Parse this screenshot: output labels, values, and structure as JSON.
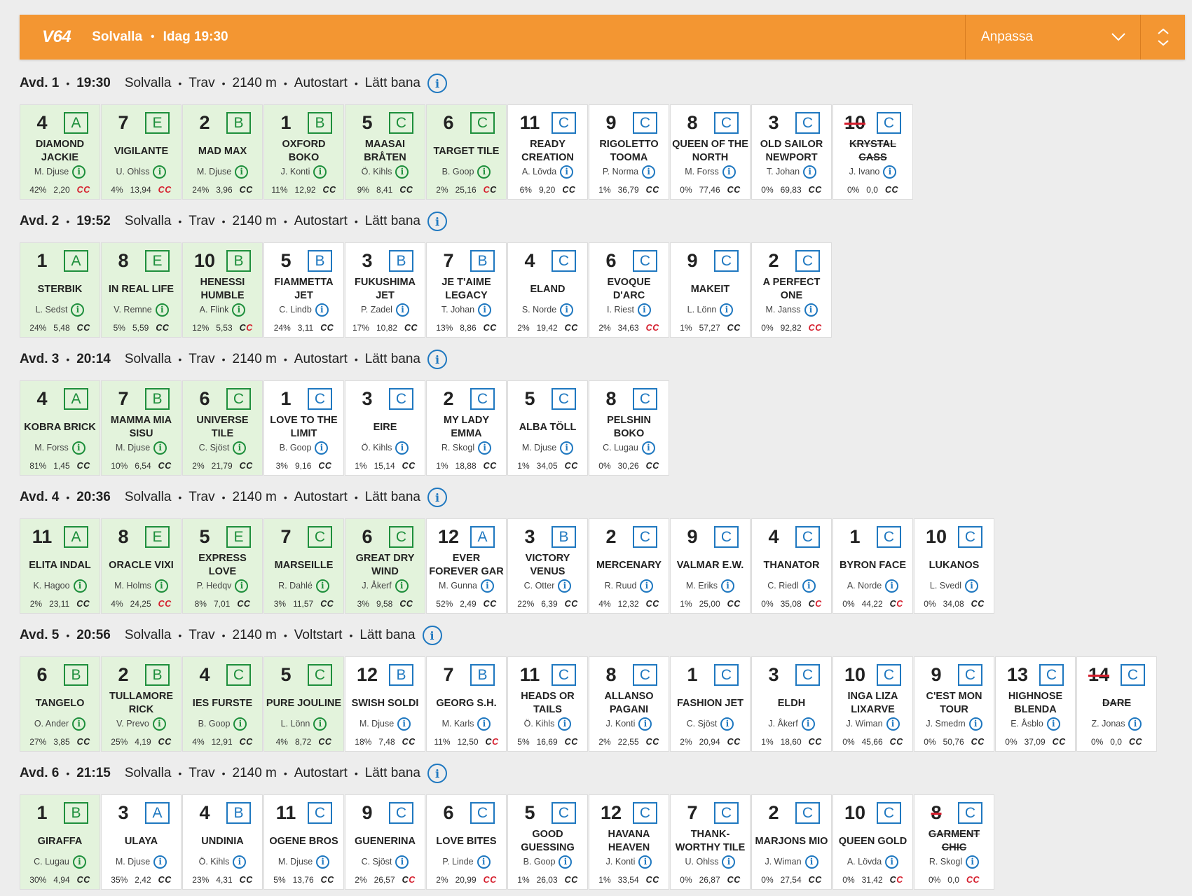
{
  "header": {
    "logo": "V64",
    "track": "Solvalla",
    "sep": "•",
    "time": "Idag 19:30",
    "adapt_label": "Anpassa",
    "bg": "#f39632"
  },
  "colors": {
    "selected_bg": "#e3f3dc",
    "selected_rank": "#1e8f3c",
    "rank_blue": "#1f78c0",
    "scratch_red": "#d51e2d"
  },
  "races": [
    {
      "avd": "Avd. 1",
      "time": "19:30",
      "track": "Solvalla",
      "type": "Trav",
      "dist": "2140 m",
      "start": "Autostart",
      "track_cond": "Lätt bana",
      "horses": [
        {
          "num": "4",
          "rank": "A",
          "name": "DIAMOND JACKIE",
          "driver": "M. Djuse",
          "pct": "42%",
          "odds": "2,20",
          "cc": [
            "r",
            "r"
          ],
          "sel": true
        },
        {
          "num": "7",
          "rank": "E",
          "name": "VIGILANTE",
          "driver": "U. Ohlss",
          "pct": "4%",
          "odds": "13,94",
          "cc": [
            "r",
            "r"
          ],
          "sel": true
        },
        {
          "num": "2",
          "rank": "B",
          "name": "MAD MAX",
          "driver": "M. Djuse",
          "pct": "24%",
          "odds": "3,96",
          "cc": [
            "n",
            "n"
          ],
          "sel": true
        },
        {
          "num": "1",
          "rank": "B",
          "name": "OXFORD BOKO",
          "driver": "J. Konti",
          "pct": "11%",
          "odds": "12,92",
          "cc": [
            "n",
            "n"
          ],
          "sel": true
        },
        {
          "num": "5",
          "rank": "C",
          "name": "MAASAI BRÅTEN",
          "driver": "Ö. Kihls",
          "pct": "9%",
          "odds": "8,41",
          "cc": [
            "n",
            "n"
          ],
          "sel": true
        },
        {
          "num": "6",
          "rank": "C",
          "name": "TARGET TILE",
          "driver": "B. Goop",
          "pct": "2%",
          "odds": "25,16",
          "cc": [
            "r",
            "n"
          ],
          "sel": true
        },
        {
          "num": "11",
          "rank": "C",
          "name": "READY CREATION",
          "driver": "A. Lövda",
          "pct": "6%",
          "odds": "9,20",
          "cc": [
            "n",
            "n"
          ],
          "sel": false
        },
        {
          "num": "9",
          "rank": "C",
          "name": "RIGOLETTO TOOMA",
          "driver": "P. Norma",
          "pct": "1%",
          "odds": "36,79",
          "cc": [
            "n",
            "n"
          ],
          "sel": false
        },
        {
          "num": "8",
          "rank": "C",
          "name": "QUEEN OF THE NORTH",
          "driver": "M. Forss",
          "pct": "0%",
          "odds": "77,46",
          "cc": [
            "n",
            "n"
          ],
          "sel": false
        },
        {
          "num": "3",
          "rank": "C",
          "name": "OLD SAILOR NEWPORT",
          "driver": "T. Johan",
          "pct": "0%",
          "odds": "69,83",
          "cc": [
            "n",
            "n"
          ],
          "sel": false
        },
        {
          "num": "10",
          "rank": "C",
          "name": "KRYSTAL CASS",
          "driver": "J. Ivano",
          "pct": "0%",
          "odds": "0,0",
          "cc": [
            "n",
            "n"
          ],
          "sel": false,
          "scratched": true
        }
      ]
    },
    {
      "avd": "Avd. 2",
      "time": "19:52",
      "track": "Solvalla",
      "type": "Trav",
      "dist": "2140 m",
      "start": "Autostart",
      "track_cond": "Lätt bana",
      "horses": [
        {
          "num": "1",
          "rank": "A",
          "name": "STERBIK",
          "driver": "L. Sedst",
          "pct": "24%",
          "odds": "5,48",
          "cc": [
            "n",
            "n"
          ],
          "sel": true
        },
        {
          "num": "8",
          "rank": "E",
          "name": "IN REAL LIFE",
          "driver": "V. Remne",
          "pct": "5%",
          "odds": "5,59",
          "cc": [
            "n",
            "n"
          ],
          "sel": true
        },
        {
          "num": "10",
          "rank": "B",
          "name": "HENESSI HUMBLE",
          "driver": "A. Flink",
          "pct": "12%",
          "odds": "5,53",
          "cc": [
            "n",
            "r"
          ],
          "sel": true
        },
        {
          "num": "5",
          "rank": "B",
          "name": "FIAMMETTA JET",
          "driver": "C. Lindb",
          "pct": "24%",
          "odds": "3,11",
          "cc": [
            "n",
            "n"
          ],
          "sel": false
        },
        {
          "num": "3",
          "rank": "B",
          "name": "FUKUSHIMA JET",
          "driver": "P. Zadel",
          "pct": "17%",
          "odds": "10,82",
          "cc": [
            "n",
            "n"
          ],
          "sel": false
        },
        {
          "num": "7",
          "rank": "B",
          "name": "JE T'AIME LEGACY",
          "driver": "T. Johan",
          "pct": "13%",
          "odds": "8,86",
          "cc": [
            "n",
            "n"
          ],
          "sel": false
        },
        {
          "num": "4",
          "rank": "C",
          "name": "ELAND",
          "driver": "S. Norde",
          "pct": "2%",
          "odds": "19,42",
          "cc": [
            "n",
            "n"
          ],
          "sel": false
        },
        {
          "num": "6",
          "rank": "C",
          "name": "EVOQUE D'ARC",
          "driver": "I. Riest",
          "pct": "2%",
          "odds": "34,63",
          "cc": [
            "r",
            "r"
          ],
          "sel": false
        },
        {
          "num": "9",
          "rank": "C",
          "name": "MAKEIT",
          "driver": "L. Lönn",
          "pct": "1%",
          "odds": "57,27",
          "cc": [
            "n",
            "n"
          ],
          "sel": false
        },
        {
          "num": "2",
          "rank": "C",
          "name": "A PERFECT ONE",
          "driver": "M. Janss",
          "pct": "0%",
          "odds": "92,82",
          "cc": [
            "r",
            "r"
          ],
          "sel": false
        }
      ]
    },
    {
      "avd": "Avd. 3",
      "time": "20:14",
      "track": "Solvalla",
      "type": "Trav",
      "dist": "2140 m",
      "start": "Autostart",
      "track_cond": "Lätt bana",
      "horses": [
        {
          "num": "4",
          "rank": "A",
          "name": "KOBRA BRICK",
          "driver": "M. Forss",
          "pct": "81%",
          "odds": "1,45",
          "cc": [
            "n",
            "n"
          ],
          "sel": true
        },
        {
          "num": "7",
          "rank": "B",
          "name": "MAMMA MIA SISU",
          "driver": "M. Djuse",
          "pct": "10%",
          "odds": "6,54",
          "cc": [
            "n",
            "n"
          ],
          "sel": true
        },
        {
          "num": "6",
          "rank": "C",
          "name": "UNIVERSE TILE",
          "driver": "C. Sjöst",
          "pct": "2%",
          "odds": "21,79",
          "cc": [
            "n",
            "n"
          ],
          "sel": true
        },
        {
          "num": "1",
          "rank": "C",
          "name": "LOVE TO THE LIMIT",
          "driver": "B. Goop",
          "pct": "3%",
          "odds": "9,16",
          "cc": [
            "n",
            "n"
          ],
          "sel": false
        },
        {
          "num": "3",
          "rank": "C",
          "name": "EIRE",
          "driver": "Ö. Kihls",
          "pct": "1%",
          "odds": "15,14",
          "cc": [
            "n",
            "n"
          ],
          "sel": false
        },
        {
          "num": "2",
          "rank": "C",
          "name": "MY LADY EMMA",
          "driver": "R. Skogl",
          "pct": "1%",
          "odds": "18,88",
          "cc": [
            "n",
            "n"
          ],
          "sel": false
        },
        {
          "num": "5",
          "rank": "C",
          "name": "ALBA TÖLL",
          "driver": "M. Djuse",
          "pct": "1%",
          "odds": "34,05",
          "cc": [
            "n",
            "n"
          ],
          "sel": false
        },
        {
          "num": "8",
          "rank": "C",
          "name": "PELSHIN BOKO",
          "driver": "C. Lugau",
          "pct": "0%",
          "odds": "30,26",
          "cc": [
            "n",
            "n"
          ],
          "sel": false
        }
      ]
    },
    {
      "avd": "Avd. 4",
      "time": "20:36",
      "track": "Solvalla",
      "type": "Trav",
      "dist": "2140 m",
      "start": "Autostart",
      "track_cond": "Lätt bana",
      "horses": [
        {
          "num": "11",
          "rank": "A",
          "name": "ELITA INDAL",
          "driver": "K. Hagoo",
          "pct": "2%",
          "odds": "23,11",
          "cc": [
            "n",
            "n"
          ],
          "sel": true
        },
        {
          "num": "8",
          "rank": "E",
          "name": "ORACLE VIXI",
          "driver": "M. Holms",
          "pct": "4%",
          "odds": "24,25",
          "cc": [
            "r",
            "r"
          ],
          "sel": true
        },
        {
          "num": "5",
          "rank": "E",
          "name": "EXPRESS LOVE",
          "driver": "P. Hedqv",
          "pct": "8%",
          "odds": "7,01",
          "cc": [
            "n",
            "n"
          ],
          "sel": true
        },
        {
          "num": "7",
          "rank": "C",
          "name": "MARSEILLE",
          "driver": "R. Dahlé",
          "pct": "3%",
          "odds": "11,57",
          "cc": [
            "n",
            "n"
          ],
          "sel": true
        },
        {
          "num": "6",
          "rank": "C",
          "name": "GREAT DRY WIND",
          "driver": "J. Åkerf",
          "pct": "3%",
          "odds": "9,58",
          "cc": [
            "n",
            "n"
          ],
          "sel": true
        },
        {
          "num": "12",
          "rank": "A",
          "name": "EVER FOREVER GAR",
          "driver": "M. Gunna",
          "pct": "52%",
          "odds": "2,49",
          "cc": [
            "n",
            "n"
          ],
          "sel": false
        },
        {
          "num": "3",
          "rank": "B",
          "name": "VICTORY VENUS",
          "driver": "C. Otter",
          "pct": "22%",
          "odds": "6,39",
          "cc": [
            "n",
            "n"
          ],
          "sel": false
        },
        {
          "num": "2",
          "rank": "C",
          "name": "MERCENARY",
          "driver": "R. Ruud",
          "pct": "4%",
          "odds": "12,32",
          "cc": [
            "n",
            "n"
          ],
          "sel": false
        },
        {
          "num": "9",
          "rank": "C",
          "name": "VALMAR E.W.",
          "driver": "M. Eriks",
          "pct": "1%",
          "odds": "25,00",
          "cc": [
            "n",
            "n"
          ],
          "sel": false
        },
        {
          "num": "4",
          "rank": "C",
          "name": "THANATOR",
          "driver": "C. Riedl",
          "pct": "0%",
          "odds": "35,08",
          "cc": [
            "n",
            "r"
          ],
          "sel": false
        },
        {
          "num": "1",
          "rank": "C",
          "name": "BYRON FACE",
          "driver": "A. Norde",
          "pct": "0%",
          "odds": "44,22",
          "cc": [
            "n",
            "r"
          ],
          "sel": false
        },
        {
          "num": "10",
          "rank": "C",
          "name": "LUKANOS",
          "driver": "L. Svedl",
          "pct": "0%",
          "odds": "34,08",
          "cc": [
            "n",
            "n"
          ],
          "sel": false
        }
      ]
    },
    {
      "avd": "Avd. 5",
      "time": "20:56",
      "track": "Solvalla",
      "type": "Trav",
      "dist": "2140 m",
      "start": "Voltstart",
      "track_cond": "Lätt bana",
      "horses": [
        {
          "num": "6",
          "rank": "B",
          "name": "TANGELO",
          "driver": "O. Ander",
          "pct": "27%",
          "odds": "3,85",
          "cc": [
            "n",
            "n"
          ],
          "sel": true
        },
        {
          "num": "2",
          "rank": "B",
          "name": "TULLAMORE RICK",
          "driver": "V. Prevo",
          "pct": "25%",
          "odds": "4,19",
          "cc": [
            "n",
            "n"
          ],
          "sel": true
        },
        {
          "num": "4",
          "rank": "C",
          "name": "IES FURSTE",
          "driver": "B. Goop",
          "pct": "4%",
          "odds": "12,91",
          "cc": [
            "n",
            "n"
          ],
          "sel": true
        },
        {
          "num": "5",
          "rank": "C",
          "name": "PURE JOULINE",
          "driver": "L. Lönn",
          "pct": "4%",
          "odds": "8,72",
          "cc": [
            "n",
            "n"
          ],
          "sel": true
        },
        {
          "num": "12",
          "rank": "B",
          "name": "SWISH SOLDI",
          "driver": "M. Djuse",
          "pct": "18%",
          "odds": "7,48",
          "cc": [
            "n",
            "n"
          ],
          "sel": false
        },
        {
          "num": "7",
          "rank": "B",
          "name": "GEORG S.H.",
          "driver": "M. Karls",
          "pct": "11%",
          "odds": "12,50",
          "cc": [
            "n",
            "r"
          ],
          "sel": false
        },
        {
          "num": "11",
          "rank": "C",
          "name": "HEADS OR TAILS",
          "driver": "Ö. Kihls",
          "pct": "5%",
          "odds": "16,69",
          "cc": [
            "n",
            "n"
          ],
          "sel": false
        },
        {
          "num": "8",
          "rank": "C",
          "name": "ALLANSO PAGANI",
          "driver": "J. Konti",
          "pct": "2%",
          "odds": "22,55",
          "cc": [
            "n",
            "n"
          ],
          "sel": false
        },
        {
          "num": "1",
          "rank": "C",
          "name": "FASHION JET",
          "driver": "C. Sjöst",
          "pct": "2%",
          "odds": "20,94",
          "cc": [
            "n",
            "n"
          ],
          "sel": false
        },
        {
          "num": "3",
          "rank": "C",
          "name": "ELDH",
          "driver": "J. Åkerf",
          "pct": "1%",
          "odds": "18,60",
          "cc": [
            "n",
            "n"
          ],
          "sel": false
        },
        {
          "num": "10",
          "rank": "C",
          "name": "INGA LIZA LIXARVE",
          "driver": "J. Wiman",
          "pct": "0%",
          "odds": "45,66",
          "cc": [
            "n",
            "n"
          ],
          "sel": false
        },
        {
          "num": "9",
          "rank": "C",
          "name": "C'EST MON TOUR",
          "driver": "J. Smedm",
          "pct": "0%",
          "odds": "50,76",
          "cc": [
            "n",
            "n"
          ],
          "sel": false
        },
        {
          "num": "13",
          "rank": "C",
          "name": "HIGHNOSE BLENDA",
          "driver": "E. Åsblo",
          "pct": "0%",
          "odds": "37,09",
          "cc": [
            "n",
            "n"
          ],
          "sel": false
        },
        {
          "num": "14",
          "rank": "C",
          "name": "DARE",
          "driver": "Z. Jonas",
          "pct": "0%",
          "odds": "0,0",
          "cc": [
            "n",
            "n"
          ],
          "sel": false,
          "scratched": true
        }
      ]
    },
    {
      "avd": "Avd. 6",
      "time": "21:15",
      "track": "Solvalla",
      "type": "Trav",
      "dist": "2140 m",
      "start": "Autostart",
      "track_cond": "Lätt bana",
      "horses": [
        {
          "num": "1",
          "rank": "B",
          "name": "GIRAFFA",
          "driver": "C. Lugau",
          "pct": "30%",
          "odds": "4,94",
          "cc": [
            "n",
            "n"
          ],
          "sel": true
        },
        {
          "num": "3",
          "rank": "A",
          "name": "ULAYA",
          "driver": "M. Djuse",
          "pct": "35%",
          "odds": "2,42",
          "cc": [
            "n",
            "n"
          ],
          "sel": false
        },
        {
          "num": "4",
          "rank": "B",
          "name": "UNDINIA",
          "driver": "Ö. Kihls",
          "pct": "23%",
          "odds": "4,31",
          "cc": [
            "n",
            "n"
          ],
          "sel": false
        },
        {
          "num": "11",
          "rank": "C",
          "name": "OGENE BROS",
          "driver": "M. Djuse",
          "pct": "5%",
          "odds": "13,76",
          "cc": [
            "n",
            "n"
          ],
          "sel": false
        },
        {
          "num": "9",
          "rank": "C",
          "name": "GUENERINA",
          "driver": "C. Sjöst",
          "pct": "2%",
          "odds": "26,57",
          "cc": [
            "n",
            "r"
          ],
          "sel": false
        },
        {
          "num": "6",
          "rank": "C",
          "name": "LOVE BITES",
          "driver": "P. Linde",
          "pct": "2%",
          "odds": "20,99",
          "cc": [
            "r",
            "r"
          ],
          "sel": false
        },
        {
          "num": "5",
          "rank": "C",
          "name": "GOOD GUESSING",
          "driver": "B. Goop",
          "pct": "1%",
          "odds": "26,03",
          "cc": [
            "n",
            "n"
          ],
          "sel": false
        },
        {
          "num": "12",
          "rank": "C",
          "name": "HAVANA HEAVEN",
          "driver": "J. Konti",
          "pct": "1%",
          "odds": "33,54",
          "cc": [
            "n",
            "n"
          ],
          "sel": false
        },
        {
          "num": "7",
          "rank": "C",
          "name": "THANK-WORTHY TILE",
          "driver": "U. Ohlss",
          "pct": "0%",
          "odds": "26,87",
          "cc": [
            "n",
            "n"
          ],
          "sel": false
        },
        {
          "num": "2",
          "rank": "C",
          "name": "MARJONS MIO",
          "driver": "J. Wiman",
          "pct": "0%",
          "odds": "27,54",
          "cc": [
            "n",
            "n"
          ],
          "sel": false
        },
        {
          "num": "10",
          "rank": "C",
          "name": "QUEEN GOLD",
          "driver": "A. Lövda",
          "pct": "0%",
          "odds": "31,42",
          "cc": [
            "n",
            "r"
          ],
          "sel": false
        },
        {
          "num": "8",
          "rank": "C",
          "name": "GARMENT CHIC",
          "driver": "R. Skogl",
          "pct": "0%",
          "odds": "0,0",
          "cc": [
            "r",
            "r"
          ],
          "sel": false,
          "scratched": true
        }
      ]
    }
  ]
}
